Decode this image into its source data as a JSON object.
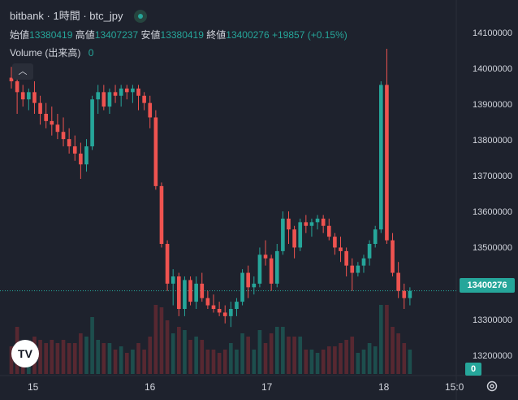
{
  "header": {
    "symbol": "bitbank · 1時間 · btc_jpy",
    "open_label": "始値",
    "open_value": "13380419",
    "high_label": "高値",
    "high_value": "13407237",
    "low_label": "安値",
    "low_value": "13380419",
    "close_label": "終値",
    "close_value": "13400276",
    "change": "+19857 (+0.15%)",
    "volume_label": "Volume (出来高)",
    "volume_value": "0"
  },
  "price_axis": [
    "14100000",
    "14000000",
    "13900000",
    "13800000",
    "13700000",
    "13600000",
    "13500000",
    "13300000",
    "13200000"
  ],
  "current_price": "13400276",
  "volume_badge": "0",
  "time_axis": [
    "15",
    "16",
    "17",
    "18",
    "15:0"
  ],
  "logo_text": "TV",
  "colors": {
    "bg": "#1e222d",
    "up": "#26a69a",
    "down": "#ef5350"
  },
  "chart_data": {
    "type": "candlestick",
    "y_unit": "JPY",
    "ylim": [
      13170000,
      14160000
    ],
    "candles": [
      [
        13990000,
        14020000,
        13960000,
        13980000
      ],
      [
        13980000,
        14010000,
        13890000,
        13950000
      ],
      [
        13950000,
        13970000,
        13910000,
        13930000
      ],
      [
        13930000,
        13960000,
        13900000,
        13950000
      ],
      [
        13950000,
        13980000,
        13890000,
        13920000
      ],
      [
        13920000,
        13940000,
        13860000,
        13890000
      ],
      [
        13890000,
        13920000,
        13850000,
        13870000
      ],
      [
        13870000,
        13910000,
        13830000,
        13860000
      ],
      [
        13860000,
        13890000,
        13820000,
        13840000
      ],
      [
        13840000,
        13880000,
        13800000,
        13820000
      ],
      [
        13820000,
        13850000,
        13780000,
        13800000
      ],
      [
        13800000,
        13830000,
        13760000,
        13780000
      ],
      [
        13780000,
        13810000,
        13710000,
        13750000
      ],
      [
        13750000,
        13820000,
        13730000,
        13800000
      ],
      [
        13800000,
        13940000,
        13790000,
        13930000
      ],
      [
        13930000,
        13970000,
        13890000,
        13950000
      ],
      [
        13950000,
        13970000,
        13900000,
        13910000
      ],
      [
        13910000,
        13960000,
        13890000,
        13950000
      ],
      [
        13950000,
        13970000,
        13920000,
        13940000
      ],
      [
        13940000,
        13970000,
        13910000,
        13960000
      ],
      [
        13960000,
        13970000,
        13930000,
        13950000
      ],
      [
        13950000,
        13970000,
        13920000,
        13960000
      ],
      [
        13960000,
        13970000,
        13900000,
        13940000
      ],
      [
        13940000,
        13950000,
        13900000,
        13920000
      ],
      [
        13920000,
        13940000,
        13850000,
        13880000
      ],
      [
        13880000,
        13900000,
        13680000,
        13690000
      ],
      [
        13690000,
        13700000,
        13520000,
        13530000
      ],
      [
        13530000,
        13540000,
        13400000,
        13420000
      ],
      [
        13420000,
        13460000,
        13360000,
        13440000
      ],
      [
        13440000,
        13450000,
        13330000,
        13350000
      ],
      [
        13350000,
        13440000,
        13330000,
        13430000
      ],
      [
        13430000,
        13440000,
        13360000,
        13370000
      ],
      [
        13370000,
        13440000,
        13350000,
        13420000
      ],
      [
        13420000,
        13450000,
        13370000,
        13380000
      ],
      [
        13380000,
        13400000,
        13350000,
        13360000
      ],
      [
        13360000,
        13390000,
        13340000,
        13350000
      ],
      [
        13350000,
        13370000,
        13330000,
        13340000
      ],
      [
        13340000,
        13360000,
        13310000,
        13330000
      ],
      [
        13330000,
        13370000,
        13300000,
        13350000
      ],
      [
        13350000,
        13380000,
        13330000,
        13370000
      ],
      [
        13370000,
        13460000,
        13360000,
        13450000
      ],
      [
        13450000,
        13470000,
        13380000,
        13410000
      ],
      [
        13410000,
        13440000,
        13390000,
        13420000
      ],
      [
        13420000,
        13520000,
        13410000,
        13500000
      ],
      [
        13500000,
        13540000,
        13470000,
        13490000
      ],
      [
        13490000,
        13500000,
        13400000,
        13420000
      ],
      [
        13420000,
        13530000,
        13410000,
        13510000
      ],
      [
        13510000,
        13620000,
        13500000,
        13600000
      ],
      [
        13600000,
        13620000,
        13530000,
        13570000
      ],
      [
        13570000,
        13580000,
        13490000,
        13520000
      ],
      [
        13520000,
        13600000,
        13510000,
        13590000
      ],
      [
        13590000,
        13610000,
        13560000,
        13580000
      ],
      [
        13580000,
        13600000,
        13550000,
        13590000
      ],
      [
        13590000,
        13610000,
        13570000,
        13600000
      ],
      [
        13600000,
        13610000,
        13560000,
        13580000
      ],
      [
        13580000,
        13600000,
        13540000,
        13550000
      ],
      [
        13550000,
        13560000,
        13500000,
        13520000
      ],
      [
        13520000,
        13550000,
        13480000,
        13510000
      ],
      [
        13510000,
        13520000,
        13440000,
        13470000
      ],
      [
        13470000,
        13490000,
        13400000,
        13450000
      ],
      [
        13450000,
        13480000,
        13440000,
        13470000
      ],
      [
        13470000,
        13500000,
        13450000,
        13490000
      ],
      [
        13490000,
        13540000,
        13470000,
        13530000
      ],
      [
        13530000,
        13580000,
        13520000,
        13570000
      ],
      [
        13570000,
        13980000,
        13560000,
        13970000
      ],
      [
        13970000,
        14070000,
        13530000,
        13540000
      ],
      [
        13540000,
        13560000,
        13440000,
        13450000
      ],
      [
        13450000,
        13480000,
        13380000,
        13400000
      ],
      [
        13400000,
        13420000,
        13350000,
        13380000
      ],
      [
        13380000,
        13410000,
        13360000,
        13400000
      ]
    ],
    "volume_max_relative": 1.0
  }
}
